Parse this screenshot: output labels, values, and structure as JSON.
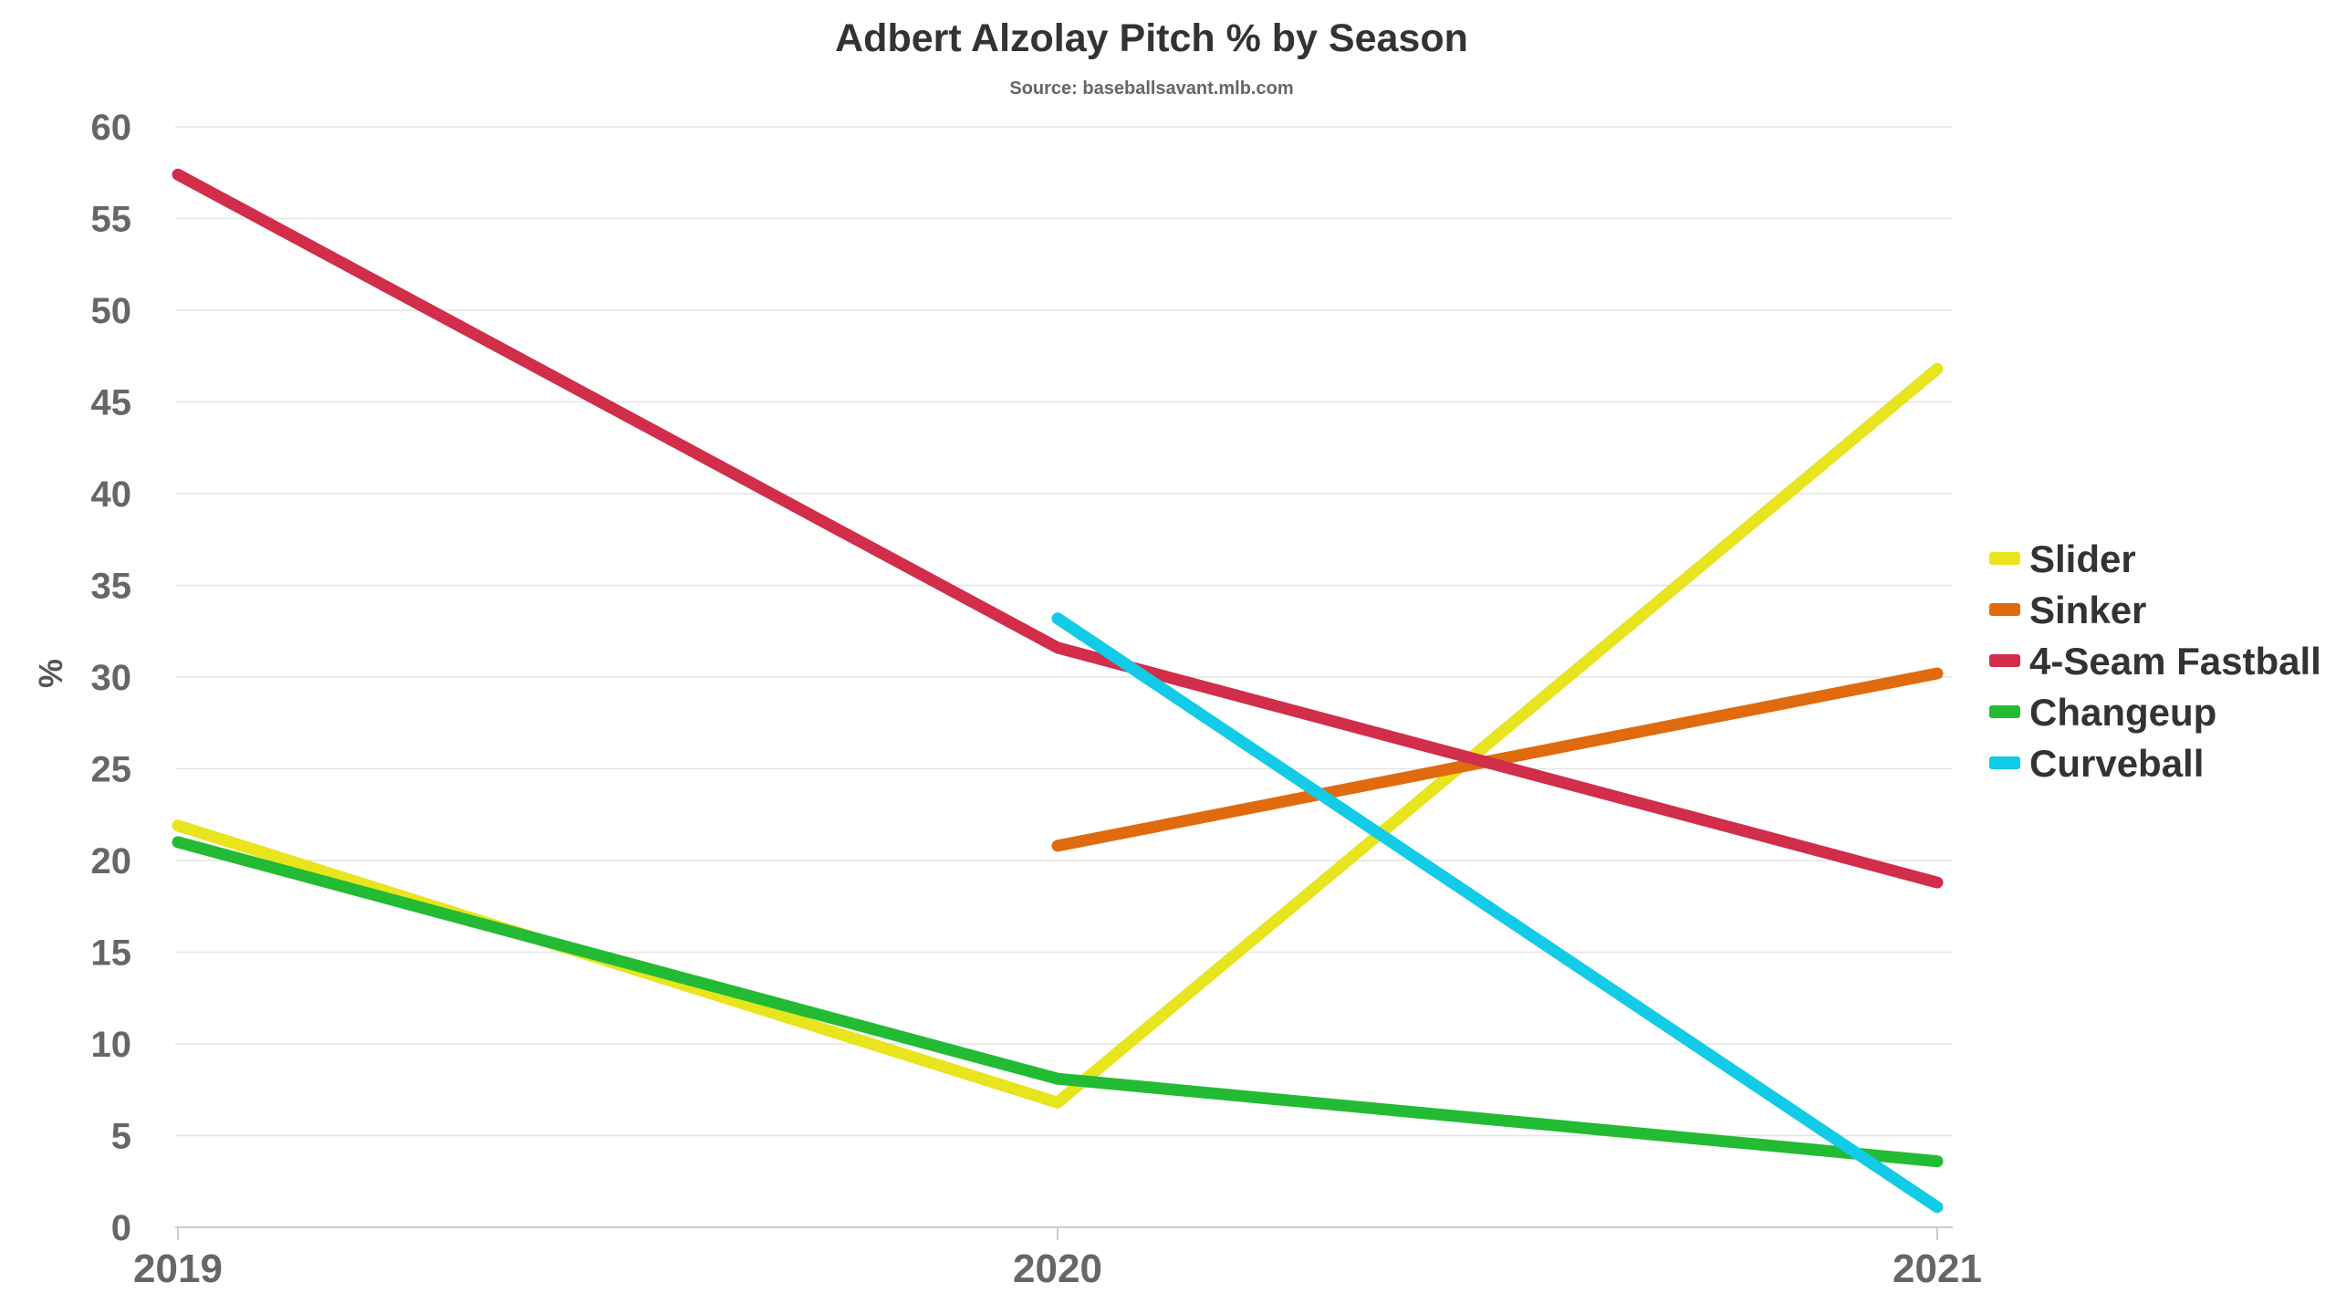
{
  "chart_data": {
    "type": "line",
    "title": "Adbert Alzolay Pitch % by Season",
    "subtitle": "Source: baseballsavant.mlb.com",
    "xlabel": "",
    "ylabel": "%",
    "categories": [
      "2019",
      "2020",
      "2021"
    ],
    "ylim": [
      0,
      60
    ],
    "yticks": [
      "0",
      "5",
      "10",
      "15",
      "20",
      "25",
      "30",
      "35",
      "40",
      "45",
      "50",
      "55",
      "60"
    ],
    "grid": true,
    "legend_position": "right",
    "series": [
      {
        "name": "Slider",
        "color": "#e8e41e",
        "values": [
          21.9,
          6.8,
          46.8
        ]
      },
      {
        "name": "Sinker",
        "color": "#e06b0e",
        "values": [
          null,
          20.8,
          30.2
        ]
      },
      {
        "name": "4-Seam Fastball",
        "color": "#d22d4a",
        "values": [
          57.4,
          31.6,
          18.8
        ]
      },
      {
        "name": "Changeup",
        "color": "#22bb33",
        "values": [
          21.0,
          8.1,
          3.6
        ]
      },
      {
        "name": "Curveball",
        "color": "#12cbe6",
        "values": [
          null,
          33.2,
          1.1
        ]
      }
    ],
    "draw_order": [
      "Slider",
      "Sinker",
      "4-Seam Fastball",
      "Changeup",
      "Curveball"
    ]
  }
}
